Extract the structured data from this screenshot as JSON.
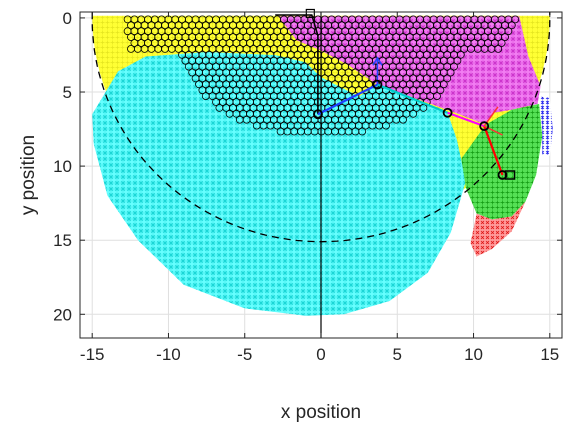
{
  "chart_data": {
    "type": "scatter",
    "title": "",
    "xlabel": "x position",
    "ylabel": "y position",
    "xlim": [
      -15.8,
      15.8
    ],
    "ylim": [
      -0.4,
      21.6
    ],
    "y_reversed": true,
    "grid": true,
    "x_ticks": [
      -15,
      -10,
      -5,
      0,
      5,
      10,
      15
    ],
    "y_ticks": [
      0,
      5,
      10,
      15,
      20
    ],
    "x_tick_labels": [
      "-15",
      "-10",
      "-5",
      "0",
      "5",
      "10",
      "15"
    ],
    "y_tick_labels": [
      "0",
      "5",
      "10",
      "15",
      "20"
    ],
    "workspace_boundary": {
      "style": "dashed",
      "color": "#000000",
      "center": [
        0,
        0
      ],
      "radius": 15
    },
    "regions": [
      {
        "name": "",
        "color": "#ffff33",
        "marker": "plus",
        "description": "outer ring fill"
      },
      {
        "name": "",
        "color": "#33ffff",
        "marker": "asterisk",
        "description": "large left/bottom region"
      },
      {
        "name": "",
        "color": "#ee55ee",
        "marker": "asterisk",
        "description": "upper right region"
      },
      {
        "name": "",
        "color": "#22cc22",
        "marker": "asterisk",
        "description": "right middle region"
      },
      {
        "name": "",
        "color": "#ee2222",
        "marker": "asterisk",
        "description": "lower right region"
      },
      {
        "name": "",
        "color": "#2222ee",
        "marker": "asterisk",
        "description": "far right strip"
      },
      {
        "name": "",
        "color": "#000000",
        "marker": "circle",
        "description": "black circle cluster"
      }
    ],
    "robot_arm": {
      "joints": [
        [
          -0.2,
          6.5
        ],
        [
          3.7,
          4.5
        ],
        [
          8.3,
          6.4
        ],
        [
          10.7,
          7.3
        ],
        [
          11.9,
          10.6
        ]
      ],
      "link_colors": [
        "#000000",
        "#ffff00",
        "#00cccc",
        "#ff00ff",
        "#ff0000"
      ]
    }
  },
  "colors": {
    "yellow": "#ffff33",
    "cyan": "#33ffff",
    "magenta": "#ee55ee",
    "green": "#22cc22",
    "red": "#ee2222",
    "blue": "#2222ee",
    "black": "#000000",
    "axis": "#262626",
    "grid": "#dfdfdf"
  }
}
